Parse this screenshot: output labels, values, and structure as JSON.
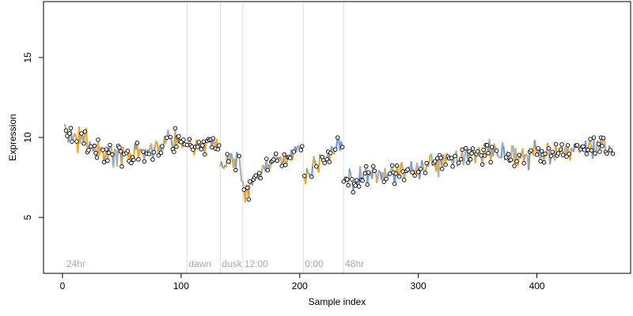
{
  "chart_data": {
    "type": "scatter",
    "title": "",
    "xlabel": "Sample index",
    "ylabel": "Expression",
    "xlim": [
      -16,
      479
    ],
    "ylim": [
      1.5,
      18.5
    ],
    "x_ticks": [
      0,
      100,
      200,
      300,
      400
    ],
    "y_ticks": [
      5,
      10,
      15
    ],
    "grid": false,
    "legend": "none",
    "colors": {
      "point_fill": "#ffffff",
      "point_stroke": "#000000",
      "segment_orange": "#f5a623",
      "segment_blue": "#6f9be3",
      "segment_gray": "#b0b0b0",
      "marker_line": "#dddddd",
      "marker_text": "#aaaaaa"
    },
    "markers": [
      {
        "x": 2,
        "label": "24hr"
      },
      {
        "x": 105,
        "label": "dawn"
      },
      {
        "x": 133,
        "label": "dusk"
      },
      {
        "x": 152,
        "label": "12:00"
      },
      {
        "x": 203,
        "label": "0:00"
      },
      {
        "x": 237,
        "label": "48hr"
      }
    ],
    "anchors": [
      [
        2,
        10.4
      ],
      [
        10,
        10.0
      ],
      [
        20,
        9.7
      ],
      [
        30,
        9.2
      ],
      [
        40,
        9.0
      ],
      [
        50,
        8.8
      ],
      [
        60,
        8.9
      ],
      [
        70,
        9.0
      ],
      [
        80,
        9.3
      ],
      [
        88,
        9.9
      ],
      [
        95,
        10.1
      ],
      [
        105,
        9.6
      ],
      [
        115,
        9.5
      ],
      [
        125,
        9.6
      ],
      [
        132,
        9.8
      ],
      [
        133,
        8.3
      ],
      [
        140,
        8.4
      ],
      [
        150,
        8.7
      ],
      [
        152,
        6.4
      ],
      [
        160,
        7.3
      ],
      [
        170,
        8.1
      ],
      [
        185,
        8.7
      ],
      [
        202,
        9.4
      ],
      [
        203,
        7.3
      ],
      [
        215,
        8.4
      ],
      [
        225,
        9.2
      ],
      [
        236,
        9.5
      ],
      [
        237,
        7.2
      ],
      [
        250,
        7.4
      ],
      [
        270,
        7.6
      ],
      [
        290,
        8.0
      ],
      [
        310,
        8.3
      ],
      [
        330,
        8.6
      ],
      [
        345,
        9.0
      ],
      [
        360,
        9.2
      ],
      [
        380,
        8.9
      ],
      [
        400,
        8.8
      ],
      [
        420,
        9.0
      ],
      [
        440,
        9.2
      ],
      [
        462,
        9.3
      ]
    ],
    "n_points": 463,
    "noise_amplitude": 0.75,
    "seed": 20240611
  }
}
